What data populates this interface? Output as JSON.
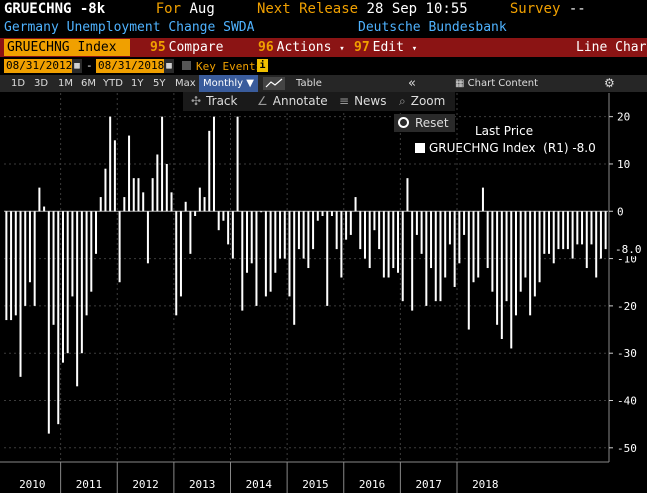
{
  "header": {
    "ticker": "GRUECHNG",
    "last_value": "-8k",
    "for_label": "For",
    "period": "Aug",
    "next_release_label": "Next Release",
    "next_release": "28 Sep 10:55",
    "survey_label": "Survey",
    "survey_value": "--",
    "description": "Germany Unemployment Change SWDA",
    "source": "Deutsche Bundesbank"
  },
  "toolbar": {
    "ticker_box": "GRUECHNG Index",
    "compare_num": "95",
    "compare_label": "Compare",
    "actions_num": "96",
    "actions_label": "Actions",
    "edit_num": "97",
    "edit_label": "Edit",
    "chart_type": "Line Chart"
  },
  "range": {
    "start_date": "08/31/2012",
    "end_date": "08/31/2018",
    "key_events": "Key Events",
    "info_icon": "i"
  },
  "periods": [
    "1D",
    "3D",
    "1M",
    "6M",
    "YTD",
    "1Y",
    "5Y",
    "Max"
  ],
  "frequency": "Monthly",
  "table_label": "Table",
  "chart_content_label": "Chart Content",
  "tools": {
    "track": "Track",
    "annotate": "Annotate",
    "news": "News",
    "zoom": "Zoom",
    "reset": "Reset"
  },
  "legend": {
    "title": "Last Price",
    "series_label": "GRUECHNG Index",
    "axis": "(R1)",
    "value": "-8.0"
  },
  "last_tag": "-8.0",
  "colors": {
    "accent": "#f0a000",
    "bar_bg": "#8b1414",
    "series": "#ffffff"
  },
  "chart_data": {
    "type": "bar",
    "title": "",
    "xlabel": "",
    "ylabel": "",
    "y_axis_side": "right",
    "ylim": [
      -53,
      25
    ],
    "yticks": [
      20,
      10,
      0,
      -10,
      -20,
      -30,
      -40,
      -50
    ],
    "x_labels": [
      "2010",
      "2011",
      "2012",
      "2013",
      "2014",
      "2015",
      "2016",
      "2017",
      "2018"
    ],
    "start": "2010-01",
    "end": "2018-08",
    "series": [
      {
        "values": [
          -23,
          -23,
          -22,
          -35,
          -20,
          -15,
          -20,
          5,
          1,
          -47,
          -24,
          -45,
          -32,
          -30,
          -18,
          -37,
          -30,
          -22,
          -17,
          -9,
          3,
          9,
          20,
          15,
          -15,
          3,
          16,
          7,
          7,
          4,
          -11,
          7,
          12,
          20,
          10,
          4,
          -22,
          -18,
          2,
          -9,
          -1,
          5,
          3,
          17,
          20,
          -4,
          -2,
          -7,
          -10,
          20,
          -21,
          -13,
          -11,
          -20,
          0,
          -18,
          -17,
          -13,
          -10,
          -10,
          -18,
          -24,
          -8,
          -10,
          -12,
          -8,
          -2,
          -1,
          -20,
          -1,
          -8,
          -14,
          -6,
          -5,
          3,
          -8,
          -10,
          -12,
          -4,
          -8,
          -14,
          -14,
          -12,
          -13,
          -19,
          7,
          -21,
          -5,
          -9,
          -20,
          -12,
          -19,
          -19,
          -14,
          -7,
          -16,
          -11,
          -5,
          -25,
          -15,
          -14,
          5,
          -12,
          -17,
          -24,
          -27,
          -19,
          -29,
          -22,
          -17,
          -14,
          -22,
          -18,
          -15,
          -9,
          -9,
          -11,
          -8,
          -8,
          -8,
          -10,
          -7,
          -7,
          -12,
          -7,
          -14,
          -10,
          -8
        ]
      }
    ]
  }
}
